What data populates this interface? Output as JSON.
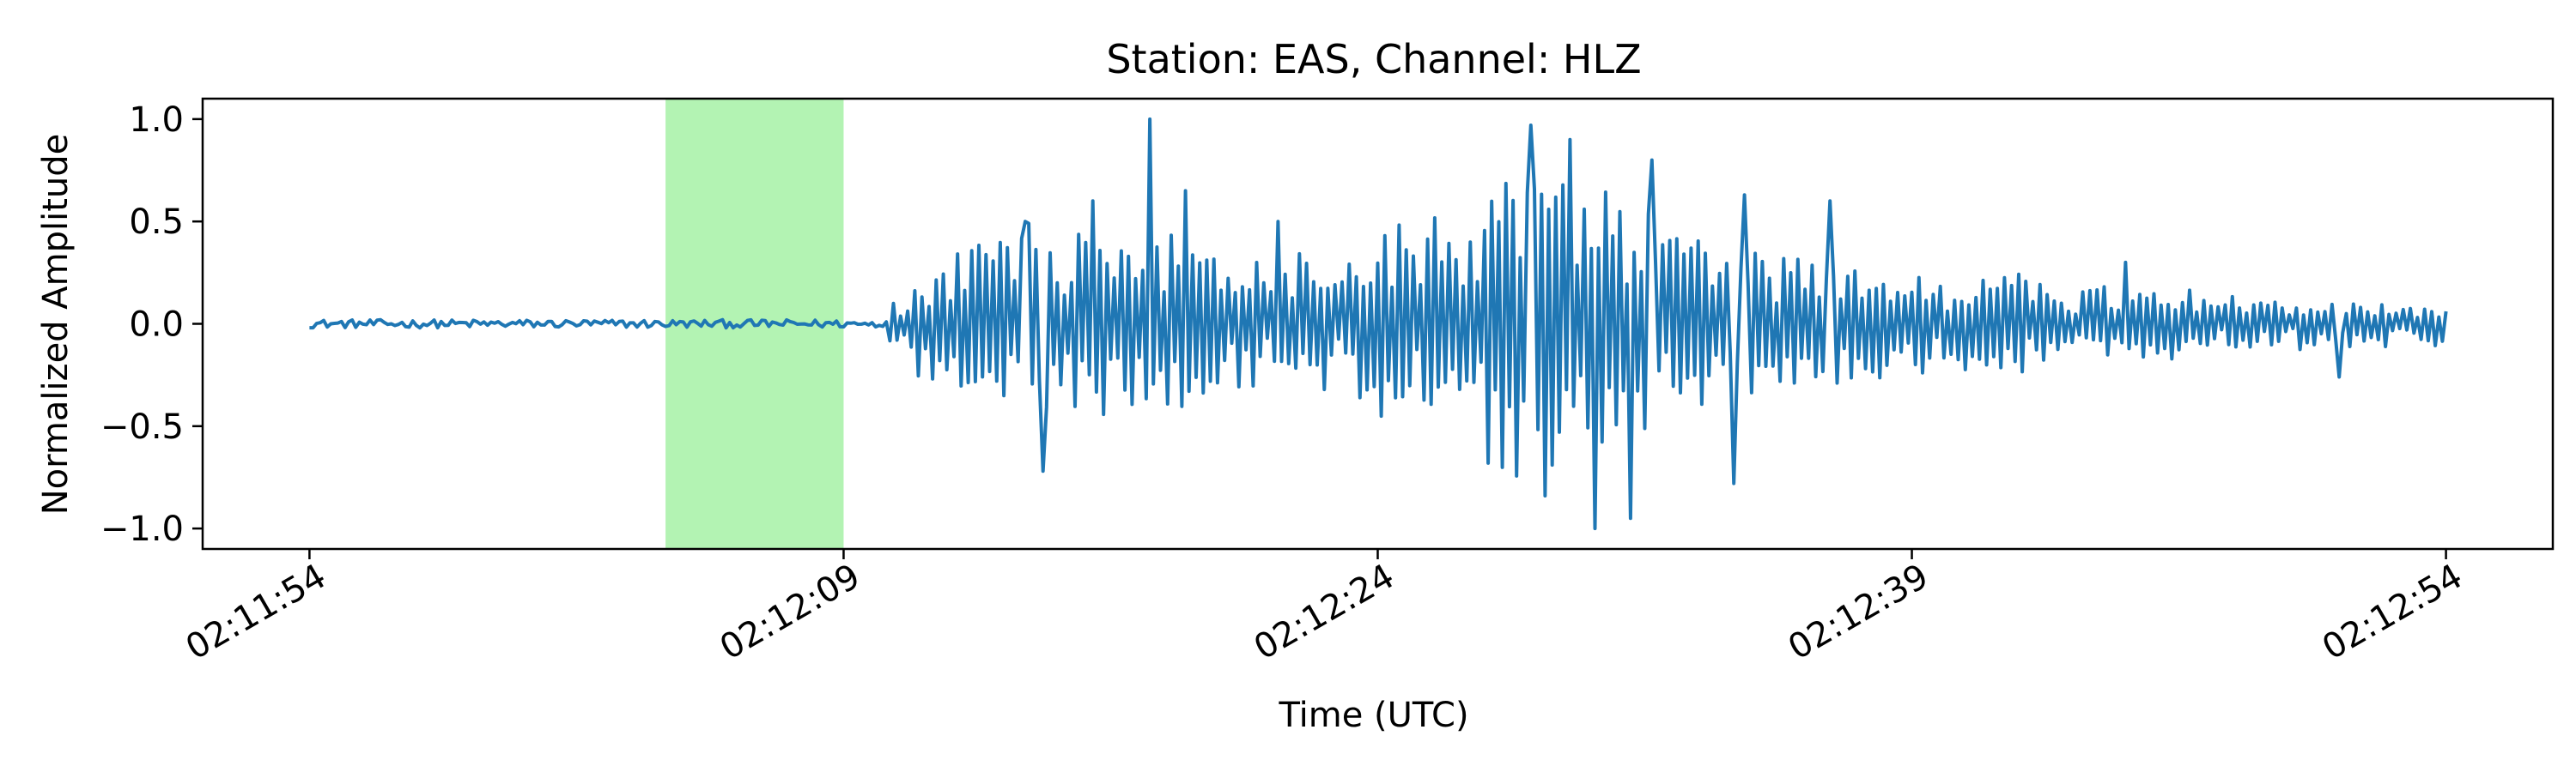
{
  "chart_data": {
    "type": "line",
    "title": "Station: EAS, Channel: HLZ",
    "xlabel": "Time (UTC)",
    "ylabel": "Normalized Amplitude",
    "x_unit": "seconds",
    "xlim": [
      "02:11:54",
      "02:12:54"
    ],
    "ylim": [
      -1.1,
      1.1
    ],
    "grid": false,
    "x_ticks": [
      "02:11:54",
      "02:12:09",
      "02:12:24",
      "02:12:39",
      "02:12:54"
    ],
    "y_ticks": [
      "1.0",
      "0.5",
      "0.0",
      "−0.5",
      "−1.0"
    ],
    "highlight": {
      "start": "02:12:04",
      "end": "02:12:09",
      "color": "#b3f3b3"
    },
    "series": [
      {
        "color": "#1f77b4",
        "x_range": [
          "02:11:54",
          "02:12:54"
        ],
        "sample_interval_s": 0.1,
        "waveform_envelope": [
          {
            "time": "02:11:54",
            "amplitude": 0.02
          },
          {
            "time": "02:12:10",
            "amplitude": 0.02
          },
          {
            "time": "02:12:11",
            "amplitude": 0.35
          },
          {
            "time": "02:12:14",
            "amplitude": 0.7
          },
          {
            "time": "02:12:18",
            "amplitude": 0.55
          },
          {
            "time": "02:12:23",
            "amplitude": 0.45
          },
          {
            "time": "02:12:26",
            "amplitude": 0.75
          },
          {
            "time": "02:12:28",
            "amplitude": 0.92
          },
          {
            "time": "02:12:30",
            "amplitude": 0.8
          },
          {
            "time": "02:12:33",
            "amplitude": 0.55
          },
          {
            "time": "02:12:37",
            "amplitude": 0.35
          },
          {
            "time": "02:12:45",
            "amplitude": 0.22
          },
          {
            "time": "02:12:54",
            "amplitude": 0.12
          }
        ],
        "peaks": [
          {
            "time": "02:12:14.1",
            "value": 0.5
          },
          {
            "time": "02:12:14.6",
            "value": -0.72
          },
          {
            "time": "02:12:16.0",
            "value": 0.6
          },
          {
            "time": "02:12:17.6",
            "value": 1.0
          },
          {
            "time": "02:12:18.6",
            "value": 0.65
          },
          {
            "time": "02:12:21.2",
            "value": 0.5
          },
          {
            "time": "02:12:28.3",
            "value": 0.97
          },
          {
            "time": "02:12:28.7",
            "value": -0.84
          },
          {
            "time": "02:12:29.4",
            "value": 0.9
          },
          {
            "time": "02:12:30.1",
            "value": -1.0
          },
          {
            "time": "02:12:31.1",
            "value": -0.95
          },
          {
            "time": "02:12:31.7",
            "value": 0.8
          },
          {
            "time": "02:12:34.0",
            "value": -0.78
          },
          {
            "time": "02:12:34.3",
            "value": 0.63
          },
          {
            "time": "02:12:36.7",
            "value": 0.6
          },
          {
            "time": "02:12:45.0",
            "value": 0.3
          },
          {
            "time": "02:12:51.0",
            "value": -0.26
          }
        ]
      }
    ]
  }
}
